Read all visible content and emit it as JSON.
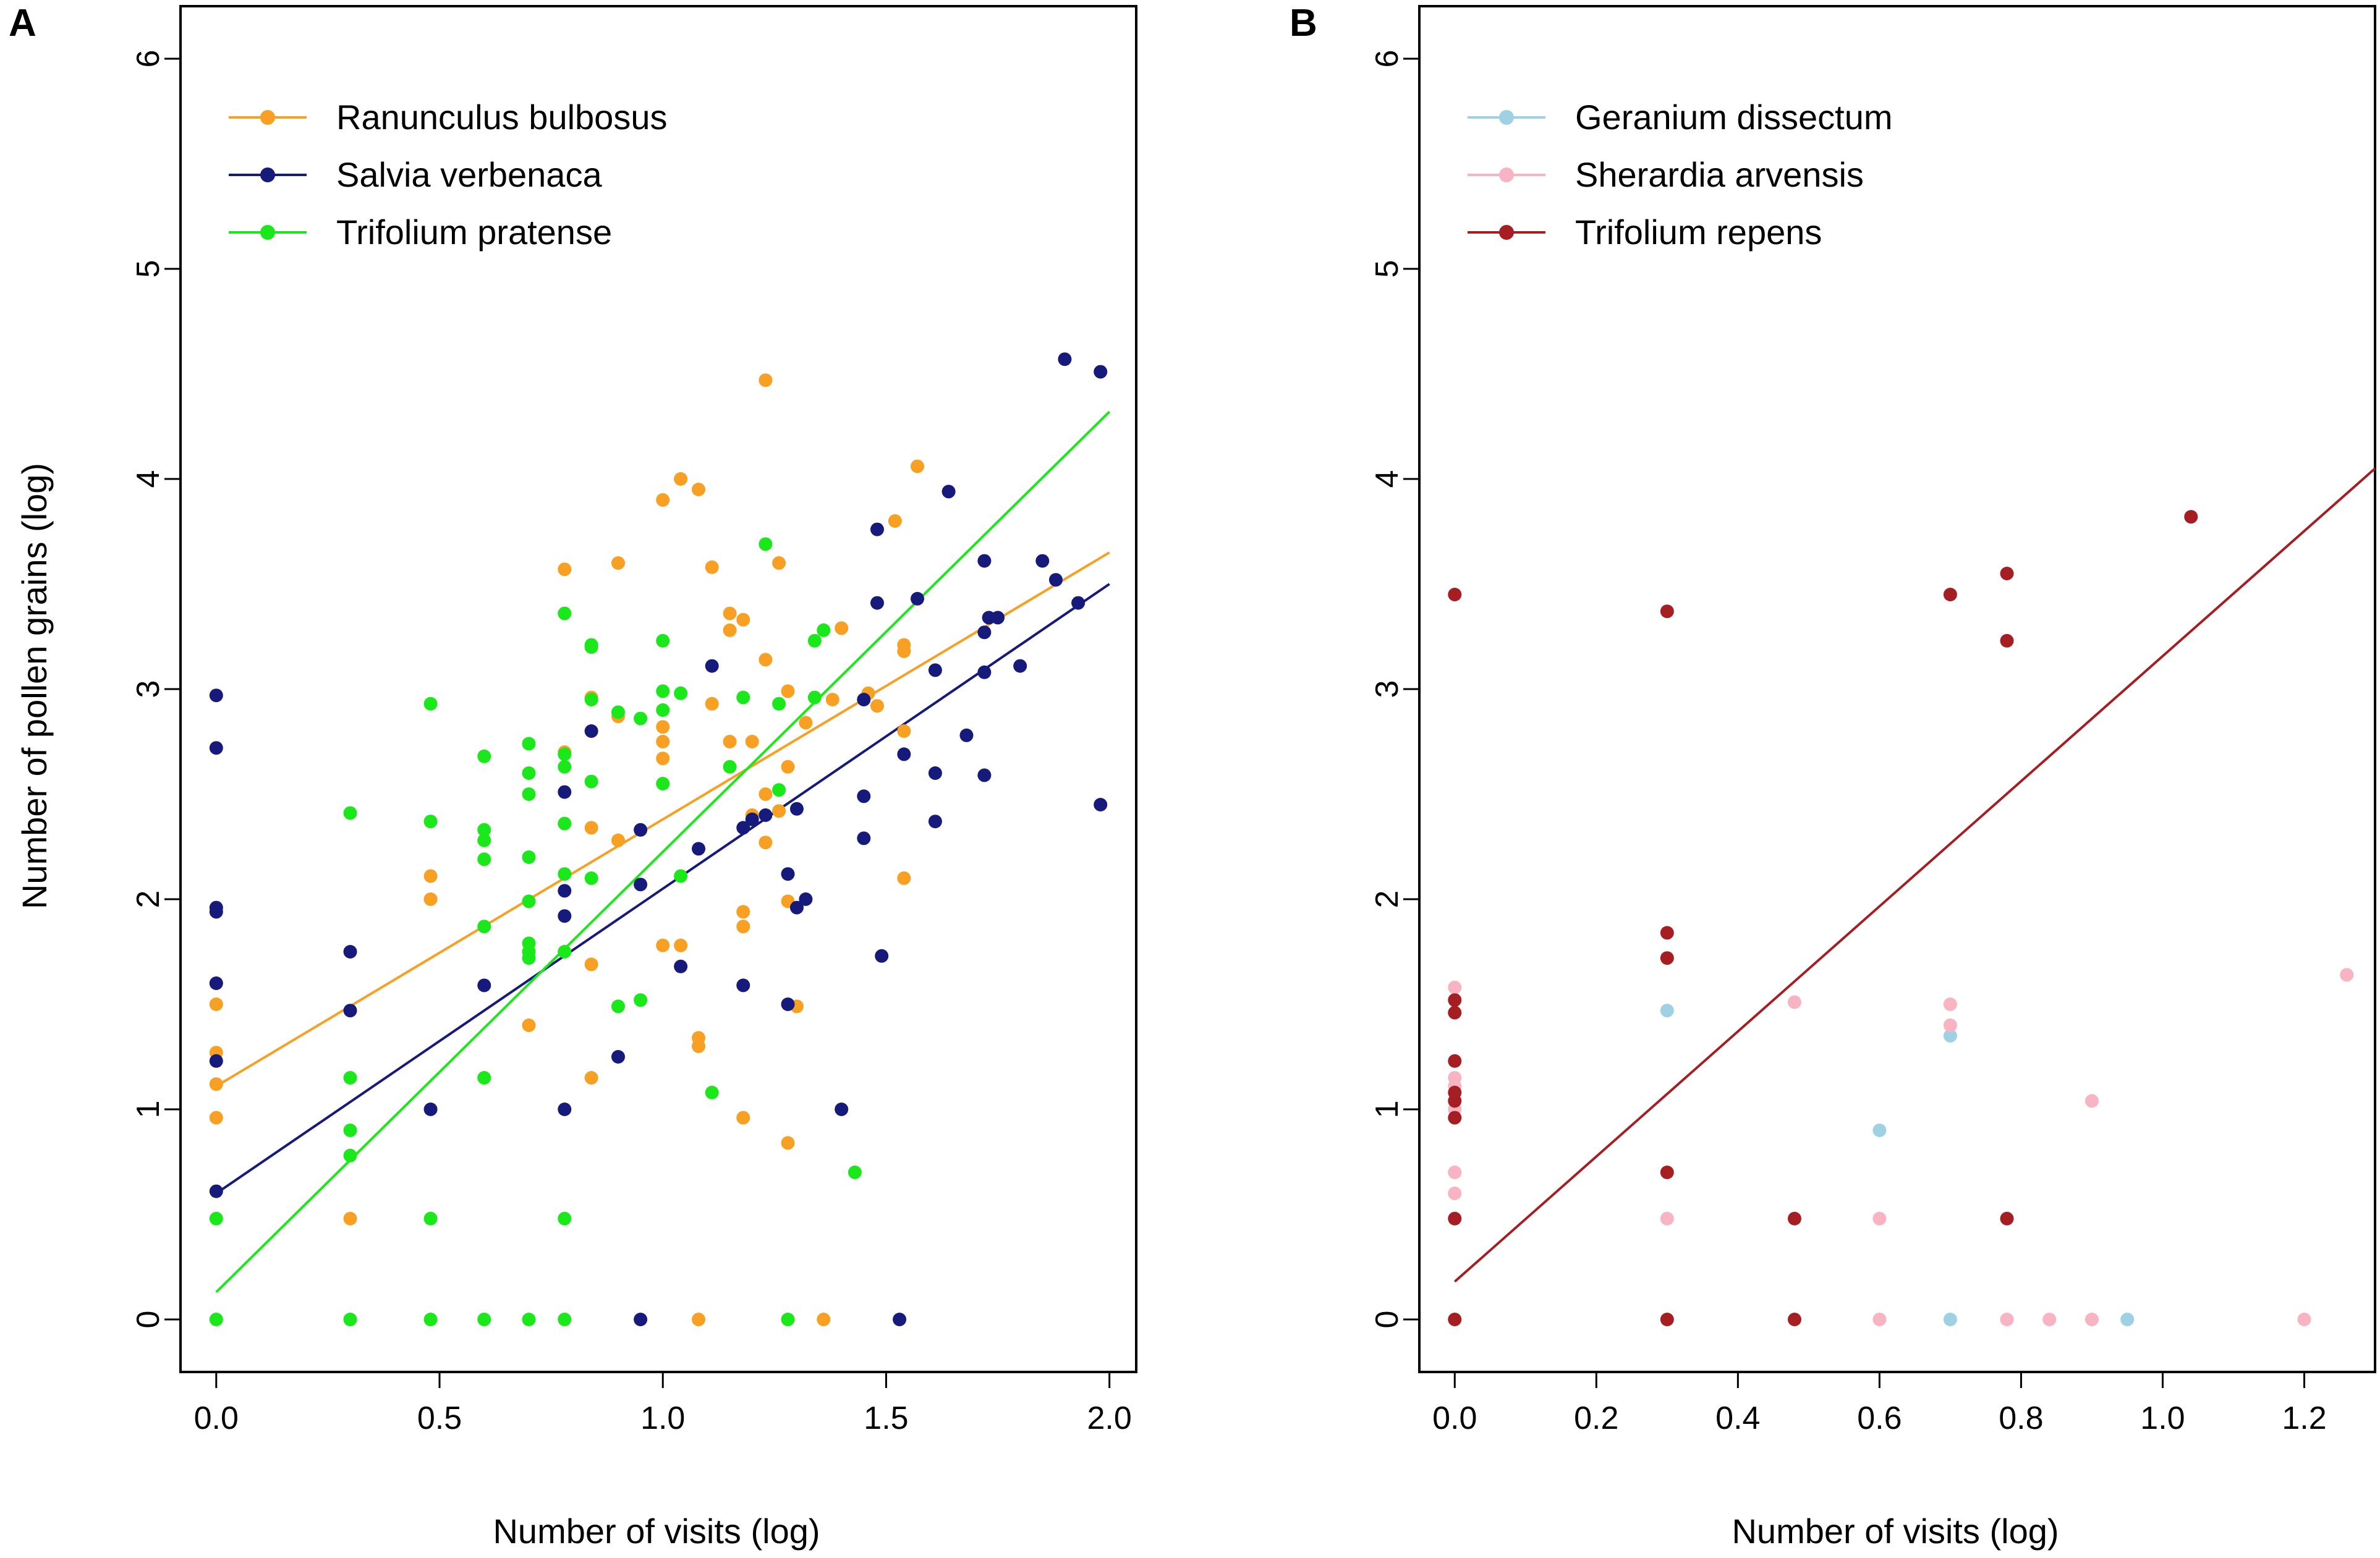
{
  "chart_data": [
    {
      "panel_label": "A",
      "type": "scatter",
      "xlabel": "Number of visits (log)",
      "ylabel": "Number of pollen grains (log)",
      "xlim": [
        -0.08,
        2.06
      ],
      "ylim": [
        -0.25,
        6.25
      ],
      "xticks": [
        "0.0",
        "0.5",
        "1.0",
        "1.5",
        "2.0"
      ],
      "yticks": [
        "0",
        "1",
        "2",
        "3",
        "4",
        "5",
        "6"
      ],
      "xtick_values": [
        0,
        0.5,
        1.0,
        1.5,
        2.0
      ],
      "ytick_values": [
        0,
        1,
        2,
        3,
        4,
        5,
        6
      ],
      "legend_position": "top-left",
      "series": [
        {
          "name": "Ranunculus bulbosus",
          "color": "#F7A024",
          "fit": {
            "x": [
              0,
              2
            ],
            "y": [
              1.11,
              3.65
            ]
          },
          "points": [
            [
              0,
              1.6
            ],
            [
              0,
              1.5
            ],
            [
              0,
              1.27
            ],
            [
              0,
              1.12
            ],
            [
              0,
              0.96
            ],
            [
              0.3,
              0.48
            ],
            [
              0.48,
              2.11
            ],
            [
              0.48,
              2.0
            ],
            [
              0.7,
              1.4
            ],
            [
              0.78,
              3.57
            ],
            [
              0.78,
              2.7
            ],
            [
              0.84,
              2.96
            ],
            [
              0.84,
              2.34
            ],
            [
              0.84,
              1.69
            ],
            [
              0.84,
              1.15
            ],
            [
              0.9,
              3.6
            ],
            [
              0.9,
              2.87
            ],
            [
              0.9,
              2.28
            ],
            [
              1.0,
              3.9
            ],
            [
              1.0,
              2.82
            ],
            [
              1.0,
              2.75
            ],
            [
              1.0,
              2.67
            ],
            [
              1.0,
              1.78
            ],
            [
              1.04,
              4.0
            ],
            [
              1.04,
              1.78
            ],
            [
              1.08,
              3.95
            ],
            [
              1.08,
              1.34
            ],
            [
              1.08,
              1.3
            ],
            [
              1.08,
              0.0
            ],
            [
              1.11,
              3.58
            ],
            [
              1.11,
              2.93
            ],
            [
              1.15,
              3.36
            ],
            [
              1.15,
              3.28
            ],
            [
              1.15,
              2.75
            ],
            [
              1.18,
              3.33
            ],
            [
              1.18,
              1.94
            ],
            [
              1.18,
              1.87
            ],
            [
              1.18,
              0.96
            ],
            [
              1.2,
              2.75
            ],
            [
              1.2,
              2.4
            ],
            [
              1.23,
              4.47
            ],
            [
              1.23,
              3.14
            ],
            [
              1.23,
              2.5
            ],
            [
              1.23,
              2.27
            ],
            [
              1.26,
              3.6
            ],
            [
              1.26,
              2.42
            ],
            [
              1.28,
              2.99
            ],
            [
              1.28,
              2.63
            ],
            [
              1.28,
              1.99
            ],
            [
              1.28,
              0.84
            ],
            [
              1.3,
              1.49
            ],
            [
              1.32,
              2.84
            ],
            [
              1.36,
              0.0
            ],
            [
              1.38,
              2.95
            ],
            [
              1.4,
              3.29
            ],
            [
              1.46,
              2.98
            ],
            [
              1.48,
              2.92
            ],
            [
              1.52,
              3.8
            ],
            [
              1.54,
              3.21
            ],
            [
              1.54,
              3.18
            ],
            [
              1.54,
              2.8
            ],
            [
              1.54,
              2.1
            ],
            [
              1.57,
              4.06
            ]
          ]
        },
        {
          "name": "Salvia verbenaca",
          "color": "#161A7A",
          "fit": {
            "x": [
              0,
              2
            ],
            "y": [
              0.6,
              3.5
            ]
          },
          "points": [
            [
              0,
              2.97
            ],
            [
              0,
              2.72
            ],
            [
              0,
              1.96
            ],
            [
              0,
              1.94
            ],
            [
              0,
              1.6
            ],
            [
              0,
              1.23
            ],
            [
              0,
              0.61
            ],
            [
              0.3,
              1.75
            ],
            [
              0.3,
              1.47
            ],
            [
              0.48,
              1.0
            ],
            [
              0.6,
              1.59
            ],
            [
              0.78,
              2.51
            ],
            [
              0.78,
              2.04
            ],
            [
              0.78,
              1.92
            ],
            [
              0.78,
              1.0
            ],
            [
              0.84,
              2.8
            ],
            [
              0.9,
              1.25
            ],
            [
              0.95,
              2.33
            ],
            [
              0.95,
              2.07
            ],
            [
              0.95,
              0.0
            ],
            [
              1.04,
              1.68
            ],
            [
              1.08,
              2.24
            ],
            [
              1.11,
              3.11
            ],
            [
              1.18,
              2.34
            ],
            [
              1.18,
              1.59
            ],
            [
              1.2,
              2.38
            ],
            [
              1.23,
              2.4
            ],
            [
              1.28,
              2.12
            ],
            [
              1.28,
              1.5
            ],
            [
              1.3,
              2.43
            ],
            [
              1.3,
              1.96
            ],
            [
              1.32,
              2.0
            ],
            [
              1.4,
              1.0
            ],
            [
              1.45,
              2.95
            ],
            [
              1.45,
              2.49
            ],
            [
              1.45,
              2.29
            ],
            [
              1.48,
              3.41
            ],
            [
              1.48,
              3.76
            ],
            [
              1.49,
              1.73
            ],
            [
              1.53,
              0.0
            ],
            [
              1.54,
              2.69
            ],
            [
              1.57,
              3.43
            ],
            [
              1.61,
              3.09
            ],
            [
              1.61,
              2.6
            ],
            [
              1.61,
              2.37
            ],
            [
              1.64,
              3.94
            ],
            [
              1.68,
              2.78
            ],
            [
              1.72,
              3.27
            ],
            [
              1.72,
              3.08
            ],
            [
              1.72,
              2.59
            ],
            [
              1.72,
              3.61
            ],
            [
              1.73,
              3.34
            ],
            [
              1.75,
              3.34
            ],
            [
              1.8,
              3.11
            ],
            [
              1.85,
              3.61
            ],
            [
              1.88,
              3.52
            ],
            [
              1.9,
              4.57
            ],
            [
              1.93,
              3.41
            ],
            [
              1.98,
              4.51
            ],
            [
              1.98,
              2.45
            ]
          ]
        },
        {
          "name": "Trifolium pratense",
          "color": "#1BE81B",
          "fit": {
            "x": [
              0,
              2
            ],
            "y": [
              0.13,
              4.32
            ]
          },
          "points": [
            [
              0,
              0.48
            ],
            [
              0,
              0.0
            ],
            [
              0.3,
              2.41
            ],
            [
              0.3,
              1.15
            ],
            [
              0.3,
              0.9
            ],
            [
              0.3,
              0.78
            ],
            [
              0.3,
              0.0
            ],
            [
              0.48,
              2.93
            ],
            [
              0.48,
              2.37
            ],
            [
              0.48,
              0.48
            ],
            [
              0.48,
              0.0
            ],
            [
              0.6,
              2.68
            ],
            [
              0.6,
              2.33
            ],
            [
              0.6,
              2.28
            ],
            [
              0.6,
              2.19
            ],
            [
              0.6,
              1.87
            ],
            [
              0.6,
              1.15
            ],
            [
              0.6,
              0.0
            ],
            [
              0.7,
              2.74
            ],
            [
              0.7,
              2.6
            ],
            [
              0.7,
              2.5
            ],
            [
              0.7,
              2.2
            ],
            [
              0.7,
              1.99
            ],
            [
              0.7,
              1.79
            ],
            [
              0.7,
              1.75
            ],
            [
              0.7,
              1.72
            ],
            [
              0.7,
              0.0
            ],
            [
              0.78,
              3.36
            ],
            [
              0.78,
              2.69
            ],
            [
              0.78,
              2.63
            ],
            [
              0.78,
              2.36
            ],
            [
              0.78,
              2.12
            ],
            [
              0.78,
              1.75
            ],
            [
              0.78,
              0.48
            ],
            [
              0.78,
              0.0
            ],
            [
              0.84,
              3.21
            ],
            [
              0.84,
              3.2
            ],
            [
              0.84,
              2.95
            ],
            [
              0.84,
              2.56
            ],
            [
              0.84,
              2.1
            ],
            [
              0.9,
              2.89
            ],
            [
              0.9,
              1.49
            ],
            [
              0.95,
              2.86
            ],
            [
              0.95,
              1.52
            ],
            [
              1.0,
              3.23
            ],
            [
              1.0,
              2.99
            ],
            [
              1.0,
              2.9
            ],
            [
              1.0,
              2.55
            ],
            [
              1.04,
              2.98
            ],
            [
              1.04,
              2.11
            ],
            [
              1.11,
              1.08
            ],
            [
              1.15,
              2.63
            ],
            [
              1.18,
              2.96
            ],
            [
              1.23,
              3.69
            ],
            [
              1.26,
              2.52
            ],
            [
              1.26,
              2.93
            ],
            [
              1.28,
              0.0
            ],
            [
              1.34,
              3.23
            ],
            [
              1.34,
              2.96
            ],
            [
              1.36,
              3.28
            ],
            [
              1.43,
              0.7
            ]
          ]
        }
      ]
    },
    {
      "panel_label": "B",
      "type": "scatter",
      "xlabel": "Number of visits (log)",
      "ylabel": "",
      "xlim": [
        -0.05,
        1.3
      ],
      "ylim": [
        -0.25,
        6.25
      ],
      "xticks": [
        "0.0",
        "0.2",
        "0.4",
        "0.6",
        "0.8",
        "1.0",
        "1.2"
      ],
      "yticks": [
        "0",
        "1",
        "2",
        "3",
        "4",
        "5",
        "6"
      ],
      "xtick_values": [
        0,
        0.2,
        0.4,
        0.6,
        0.8,
        1.0,
        1.2
      ],
      "ytick_values": [
        0,
        1,
        2,
        3,
        4,
        5,
        6
      ],
      "legend_position": "top-left",
      "series": [
        {
          "name": "Geranium dissectum",
          "color": "#9FD1E4",
          "points": [
            [
              0.3,
              1.47
            ],
            [
              0.6,
              0.9
            ],
            [
              0.7,
              1.35
            ],
            [
              0.7,
              0.0
            ],
            [
              0.95,
              0.0
            ]
          ]
        },
        {
          "name": "Sherardia arvensis",
          "color": "#F8B4C2",
          "points": [
            [
              0,
              1.58
            ],
            [
              0,
              1.15
            ],
            [
              0,
              1.11
            ],
            [
              0,
              1.0
            ],
            [
              0,
              0.7
            ],
            [
              0,
              0.6
            ],
            [
              0,
              0.48
            ],
            [
              0.3,
              0.48
            ],
            [
              0.48,
              1.51
            ],
            [
              0.6,
              0.48
            ],
            [
              0.6,
              0.0
            ],
            [
              0.7,
              1.5
            ],
            [
              0.7,
              1.4
            ],
            [
              0.78,
              0.0
            ],
            [
              0.84,
              0.0
            ],
            [
              0.9,
              1.04
            ],
            [
              0.9,
              0.0
            ],
            [
              1.2,
              0.0
            ],
            [
              1.26,
              1.64
            ]
          ]
        },
        {
          "name": "Trifolium repens",
          "color": "#A51E22",
          "fit": {
            "x": [
              0,
              1.3
            ],
            "y": [
              0.18,
              4.05
            ]
          },
          "points": [
            [
              0,
              3.45
            ],
            [
              0,
              1.52
            ],
            [
              0,
              1.46
            ],
            [
              0,
              1.23
            ],
            [
              0,
              1.08
            ],
            [
              0,
              1.04
            ],
            [
              0,
              0.96
            ],
            [
              0,
              0.48
            ],
            [
              0,
              0.0
            ],
            [
              0.3,
              3.37
            ],
            [
              0.3,
              1.84
            ],
            [
              0.3,
              1.72
            ],
            [
              0.3,
              0.7
            ],
            [
              0.3,
              0.0
            ],
            [
              0.48,
              0.48
            ],
            [
              0.48,
              0.0
            ],
            [
              0.7,
              3.45
            ],
            [
              0.78,
              3.55
            ],
            [
              0.78,
              3.23
            ],
            [
              0.78,
              0.48
            ],
            [
              1.04,
              3.82
            ]
          ]
        }
      ]
    }
  ]
}
